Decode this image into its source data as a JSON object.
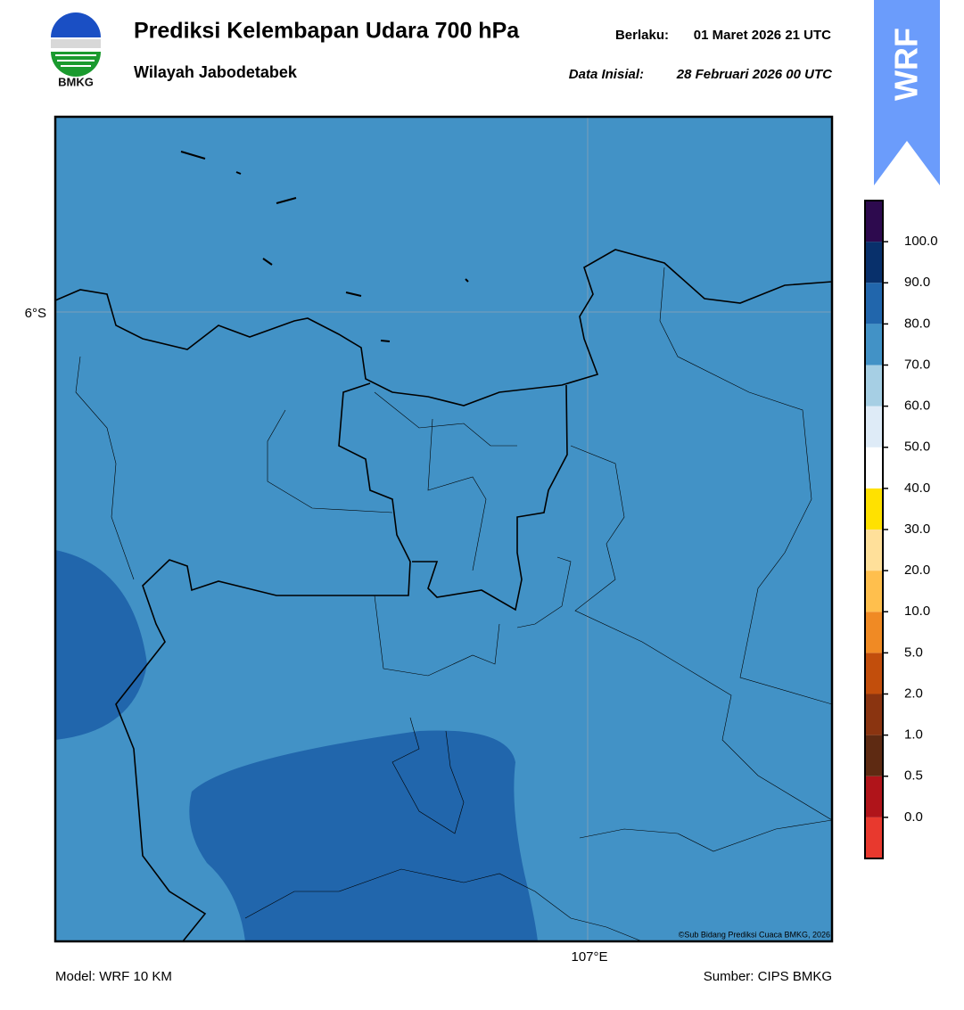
{
  "header": {
    "title": "Prediksi Kelembapan Udara 700 hPa",
    "subtitle": "Wilayah Jabodetabek",
    "valid_label": "Berlaku:",
    "valid_time": "01 Maret 2026 21 UTC",
    "init_label": "Data Inisial:",
    "init_time": "28 Februari 2026 00 UTC",
    "logo_text": "BMKG",
    "badge": "WRF"
  },
  "map": {
    "lat_label": "6°S",
    "lon_label": "107°E",
    "copyright": "©Sub Bidang Prediksi Cuaca BMKG, 2026",
    "fill_color": "#4292c6",
    "high_color": "#2166ac"
  },
  "colorbar": {
    "labels": [
      "0.0",
      "0.5",
      "1.0",
      "2.0",
      "5.0",
      "10.0",
      "20.0",
      "30.0",
      "40.0",
      "50.0",
      "60.0",
      "70.0",
      "80.0",
      "90.0",
      "100.0"
    ],
    "colors": [
      "#e8392e",
      "#b0141a",
      "#5e2a12",
      "#8a3410",
      "#c24e0c",
      "#f08a24",
      "#ffbf4d",
      "#ffe09a",
      "#ffe100",
      "#ffffff",
      "#deebf7",
      "#a6cfe4",
      "#4292c6",
      "#2166ac",
      "#08306b",
      "#2d0a4e"
    ]
  },
  "footer": {
    "model": "Model: WRF 10 KM",
    "source": "Sumber: CIPS BMKG"
  }
}
